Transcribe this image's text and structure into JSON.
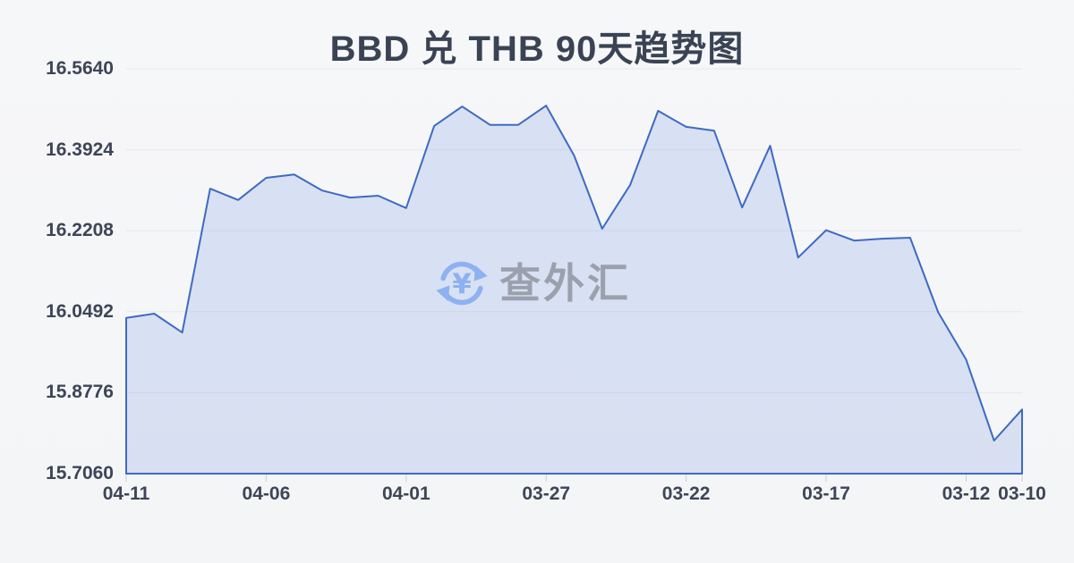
{
  "header": {
    "title": "BBD 兑 THB 90天趋势图"
  },
  "watermark": {
    "text": "查外汇",
    "icon": "currency-exchange-refresh-icon",
    "icon_color": "#8db1f1",
    "text_color": "#9aa1ad"
  },
  "chart_data": {
    "type": "area",
    "title": "BBD 兑 THB 90天趋势图",
    "xlabel": "",
    "ylabel": "",
    "legend": "none",
    "grid": true,
    "ylim": [
      15.706,
      16.564
    ],
    "y_tick_labels": [
      "16.5640",
      "16.3924",
      "16.2208",
      "16.0492",
      "15.8776",
      "15.7060"
    ],
    "x_tick_labels": [
      "04-11",
      "04-06",
      "04-01",
      "03-27",
      "03-22",
      "03-17",
      "03-12",
      "03-10"
    ],
    "x": [
      "04-11",
      "04-10",
      "04-09",
      "04-08",
      "04-07",
      "04-06",
      "04-05",
      "04-04",
      "04-03",
      "04-02",
      "04-01",
      "03-31",
      "03-30",
      "03-29",
      "03-28",
      "03-27",
      "03-26",
      "03-25",
      "03-24",
      "03-23",
      "03-22",
      "03-21",
      "03-20",
      "03-19",
      "03-18",
      "03-17",
      "03-16",
      "03-15",
      "03-14",
      "03-13",
      "03-12",
      "03-11",
      "03-10"
    ],
    "values": [
      16.036,
      16.045,
      16.005,
      16.31,
      16.286,
      16.333,
      16.34,
      16.306,
      16.291,
      16.295,
      16.269,
      16.443,
      16.484,
      16.445,
      16.445,
      16.486,
      16.38,
      16.225,
      16.318,
      16.475,
      16.441,
      16.433,
      16.27,
      16.401,
      16.164,
      16.222,
      16.2,
      16.204,
      16.206,
      16.048,
      15.948,
      15.776,
      15.842
    ],
    "colors": {
      "line": "#3e6ac2",
      "fill": "rgba(90,130,220,0.18)",
      "grid": "#e6e8ec",
      "tick": "#c9cdd5",
      "axis_text": "#3d4556",
      "background": "#f5f6f8"
    }
  }
}
